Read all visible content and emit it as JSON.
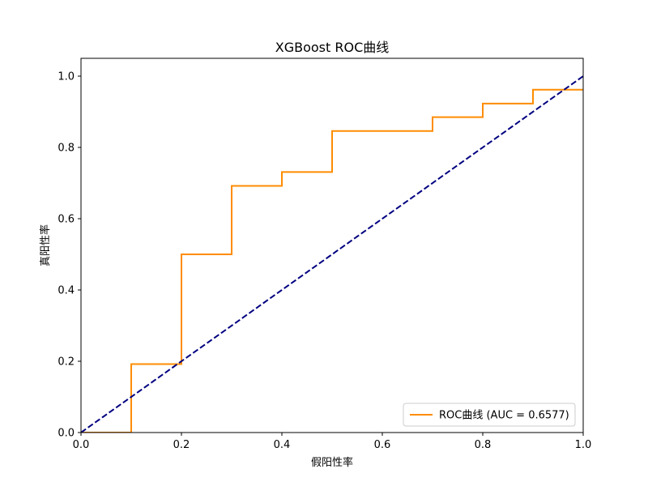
{
  "chart_data": {
    "type": "line",
    "title": "XGBoost ROC曲线",
    "xlabel": "假阳性率",
    "ylabel": "真阳性率",
    "xlim": [
      0.0,
      1.0
    ],
    "ylim": [
      0.0,
      1.05
    ],
    "xticks": [
      0.0,
      0.2,
      0.4,
      0.6,
      0.8,
      1.0
    ],
    "yticks": [
      0.0,
      0.2,
      0.4,
      0.6,
      0.8,
      1.0
    ],
    "xtick_labels": [
      "0.0",
      "0.2",
      "0.4",
      "0.6",
      "0.8",
      "1.0"
    ],
    "ytick_labels": [
      "0.0",
      "0.2",
      "0.4",
      "0.6",
      "0.8",
      "1.0"
    ],
    "grid": false,
    "legend_position": "lower-right",
    "series": [
      {
        "name": "ROC曲线 (AUC = 0.6577)",
        "color": "#ff8c00",
        "style": "solid",
        "x": [
          0.0,
          0.1,
          0.1,
          0.2,
          0.2,
          0.3,
          0.3,
          0.4,
          0.4,
          0.5,
          0.5,
          0.7,
          0.7,
          0.8,
          0.8,
          0.9,
          0.9,
          1.0
        ],
        "y": [
          0.0,
          0.0,
          0.192,
          0.192,
          0.5,
          0.5,
          0.692,
          0.692,
          0.731,
          0.731,
          0.846,
          0.846,
          0.885,
          0.885,
          0.923,
          0.923,
          0.962,
          0.962
        ]
      },
      {
        "color": "#000080",
        "style": "dashed",
        "x": [
          0.0,
          1.0
        ],
        "y": [
          0.0,
          1.0
        ]
      }
    ]
  }
}
